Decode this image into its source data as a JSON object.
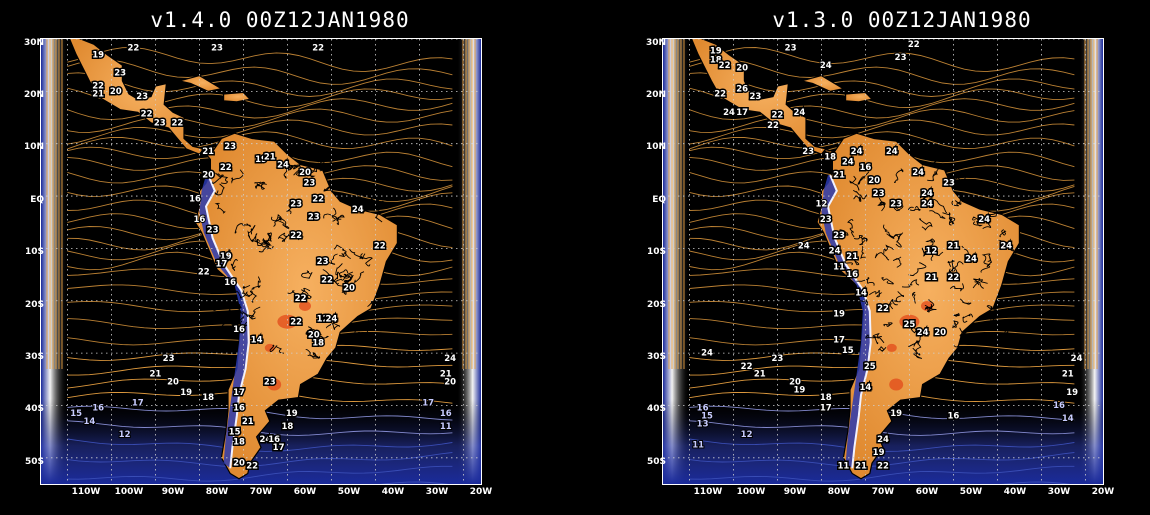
{
  "panels": [
    {
      "title": "v1.4.0  00Z12JAN1980",
      "lat_labels": [
        "30N",
        "20N",
        "10N",
        "EQ",
        "10S",
        "20S",
        "30S",
        "40S",
        "50S"
      ],
      "lon_labels": [
        "110W",
        "100W",
        "90W",
        "80W",
        "70W",
        "60W",
        "50W",
        "40W",
        "30W",
        "20W"
      ],
      "contour_labels": [
        {
          "text": "22",
          "lon": -95,
          "lat": 27.8
        },
        {
          "text": "23",
          "lon": -76,
          "lat": 27.8
        },
        {
          "text": "22",
          "lon": -53,
          "lat": 27.8
        },
        {
          "text": "19",
          "lon": -103,
          "lat": 26.5
        },
        {
          "text": "23",
          "lon": -98,
          "lat": 23
        },
        {
          "text": "22",
          "lon": -103,
          "lat": 20.5
        },
        {
          "text": "21",
          "lon": -103,
          "lat": 19
        },
        {
          "text": "20",
          "lon": -99,
          "lat": 19.5
        },
        {
          "text": "23",
          "lon": -93,
          "lat": 18.5
        },
        {
          "text": "22",
          "lon": -92,
          "lat": 15.2
        },
        {
          "text": "23",
          "lon": -89,
          "lat": 13.5
        },
        {
          "text": "22",
          "lon": -85,
          "lat": 13.5
        },
        {
          "text": "21",
          "lon": -78,
          "lat": 8
        },
        {
          "text": "23",
          "lon": -73,
          "lat": 9
        },
        {
          "text": "19",
          "lon": -66,
          "lat": 6.5
        },
        {
          "text": "21",
          "lon": -64,
          "lat": 7
        },
        {
          "text": "22",
          "lon": -74,
          "lat": 5
        },
        {
          "text": "20",
          "lon": -78,
          "lat": 3.5
        },
        {
          "text": "24",
          "lon": -61,
          "lat": 5.5
        },
        {
          "text": "20",
          "lon": -56,
          "lat": 4
        },
        {
          "text": "23",
          "lon": -55,
          "lat": 2
        },
        {
          "text": "16",
          "lon": -81,
          "lat": -1
        },
        {
          "text": "23",
          "lon": -58,
          "lat": -2
        },
        {
          "text": "22",
          "lon": -53,
          "lat": -1
        },
        {
          "text": "23",
          "lon": -54,
          "lat": -4.5
        },
        {
          "text": "24",
          "lon": -44,
          "lat": -3
        },
        {
          "text": "16",
          "lon": -80,
          "lat": -5
        },
        {
          "text": "23",
          "lon": -77,
          "lat": -7
        },
        {
          "text": "22",
          "lon": -58,
          "lat": -8
        },
        {
          "text": "22",
          "lon": -39,
          "lat": -10
        },
        {
          "text": "19",
          "lon": -74,
          "lat": -12
        },
        {
          "text": "17",
          "lon": -75,
          "lat": -13.5
        },
        {
          "text": "22",
          "lon": -79,
          "lat": -15
        },
        {
          "text": "16",
          "lon": -73,
          "lat": -17
        },
        {
          "text": "23",
          "lon": -52,
          "lat": -13
        },
        {
          "text": "22",
          "lon": -51,
          "lat": -16.5
        },
        {
          "text": "20",
          "lon": -46,
          "lat": -18
        },
        {
          "text": "22",
          "lon": -57,
          "lat": -20
        },
        {
          "text": "22",
          "lon": -58,
          "lat": -24.5
        },
        {
          "text": "12",
          "lon": -52,
          "lat": -24
        },
        {
          "text": "24",
          "lon": -50,
          "lat": -24
        },
        {
          "text": "20",
          "lon": -54,
          "lat": -27
        },
        {
          "text": "18",
          "lon": -53,
          "lat": -28.5
        },
        {
          "text": "16",
          "lon": -71,
          "lat": -26
        },
        {
          "text": "14",
          "lon": -67,
          "lat": -28
        },
        {
          "text": "23",
          "lon": -87,
          "lat": -31.5
        },
        {
          "text": "21",
          "lon": -90,
          "lat": -34.5
        },
        {
          "text": "20",
          "lon": -86,
          "lat": -36
        },
        {
          "text": "19",
          "lon": -83,
          "lat": -38
        },
        {
          "text": "17",
          "lon": -94,
          "lat": -40
        },
        {
          "text": "18",
          "lon": -78,
          "lat": -39
        },
        {
          "text": "17",
          "lon": -71,
          "lat": -38
        },
        {
          "text": "16",
          "lon": -71,
          "lat": -41
        },
        {
          "text": "21",
          "lon": -69,
          "lat": -43.5
        },
        {
          "text": "23",
          "lon": -64,
          "lat": -36
        },
        {
          "text": "19",
          "lon": -59,
          "lat": -42
        },
        {
          "text": "18",
          "lon": -60,
          "lat": -44.5
        },
        {
          "text": "15",
          "lon": -108,
          "lat": -42
        },
        {
          "text": "16",
          "lon": -103,
          "lat": -41
        },
        {
          "text": "14",
          "lon": -105,
          "lat": -43.5
        },
        {
          "text": "12",
          "lon": -97,
          "lat": -46
        },
        {
          "text": "15",
          "lon": -72,
          "lat": -45.5
        },
        {
          "text": "18",
          "lon": -71,
          "lat": -47.5
        },
        {
          "text": "24",
          "lon": -65,
          "lat": -47
        },
        {
          "text": "16",
          "lon": -63,
          "lat": -47
        },
        {
          "text": "17",
          "lon": -62,
          "lat": -48.5
        },
        {
          "text": "20",
          "lon": -71,
          "lat": -51.5
        },
        {
          "text": "22",
          "lon": -68,
          "lat": -52
        },
        {
          "text": "24",
          "lon": -23,
          "lat": -31.5
        },
        {
          "text": "21",
          "lon": -24,
          "lat": -34.5
        },
        {
          "text": "20",
          "lon": -23,
          "lat": -36
        },
        {
          "text": "17",
          "lon": -28,
          "lat": -40
        },
        {
          "text": "16",
          "lon": -24,
          "lat": -42
        },
        {
          "text": "11",
          "lon": -24,
          "lat": -44.5
        }
      ]
    },
    {
      "title": "v1.3.0  00Z12JAN1980",
      "lat_labels": [
        "30N",
        "20N",
        "10N",
        "EQ",
        "10S",
        "20S",
        "30S",
        "40S",
        "50S"
      ],
      "lon_labels": [
        "110W",
        "100W",
        "90W",
        "80W",
        "70W",
        "60W",
        "50W",
        "40W",
        "30W",
        "20W"
      ],
      "contour_labels": [
        {
          "text": "23",
          "lon": -87,
          "lat": 27.8
        },
        {
          "text": "22",
          "lon": -59,
          "lat": 28.5
        },
        {
          "text": "23",
          "lon": -62,
          "lat": 26
        },
        {
          "text": "24",
          "lon": -79,
          "lat": 24.5
        },
        {
          "text": "19",
          "lon": -104,
          "lat": 27.2
        },
        {
          "text": "18",
          "lon": -104,
          "lat": 25.5
        },
        {
          "text": "22",
          "lon": -102,
          "lat": 24.5
        },
        {
          "text": "20",
          "lon": -98,
          "lat": 24
        },
        {
          "text": "26",
          "lon": -98,
          "lat": 20
        },
        {
          "text": "22",
          "lon": -103,
          "lat": 19
        },
        {
          "text": "23",
          "lon": -95,
          "lat": 18.5
        },
        {
          "text": "24",
          "lon": -101,
          "lat": 15.5
        },
        {
          "text": "17",
          "lon": -98,
          "lat": 15.5
        },
        {
          "text": "22",
          "lon": -90,
          "lat": 15
        },
        {
          "text": "24",
          "lon": -85,
          "lat": 15.5
        },
        {
          "text": "22",
          "lon": -91,
          "lat": 13
        },
        {
          "text": "23",
          "lon": -83,
          "lat": 8
        },
        {
          "text": "24",
          "lon": -72,
          "lat": 8
        },
        {
          "text": "24",
          "lon": -64,
          "lat": 8
        },
        {
          "text": "18",
          "lon": -78,
          "lat": 7
        },
        {
          "text": "24",
          "lon": -74,
          "lat": 6
        },
        {
          "text": "16",
          "lon": -70,
          "lat": 5
        },
        {
          "text": "21",
          "lon": -76,
          "lat": 3.5
        },
        {
          "text": "20",
          "lon": -68,
          "lat": 2.5
        },
        {
          "text": "24",
          "lon": -58,
          "lat": 4
        },
        {
          "text": "23",
          "lon": -51,
          "lat": 2
        },
        {
          "text": "24",
          "lon": -56,
          "lat": 0
        },
        {
          "text": "23",
          "lon": -67,
          "lat": 0
        },
        {
          "text": "12",
          "lon": -80,
          "lat": -2
        },
        {
          "text": "23",
          "lon": -63,
          "lat": -2
        },
        {
          "text": "24",
          "lon": -56,
          "lat": -2
        },
        {
          "text": "23",
          "lon": -79,
          "lat": -5
        },
        {
          "text": "24",
          "lon": -43,
          "lat": -5
        },
        {
          "text": "24",
          "lon": -84,
          "lat": -10
        },
        {
          "text": "24",
          "lon": -38,
          "lat": -10
        },
        {
          "text": "23",
          "lon": -76,
          "lat": -8
        },
        {
          "text": "21",
          "lon": -50,
          "lat": -10
        },
        {
          "text": "12",
          "lon": -55,
          "lat": -11
        },
        {
          "text": "24",
          "lon": -77,
          "lat": -11
        },
        {
          "text": "21",
          "lon": -73,
          "lat": -12
        },
        {
          "text": "24",
          "lon": -46,
          "lat": -12.5
        },
        {
          "text": "11",
          "lon": -76,
          "lat": -14
        },
        {
          "text": "16",
          "lon": -73,
          "lat": -15.5
        },
        {
          "text": "21",
          "lon": -55,
          "lat": -16
        },
        {
          "text": "22",
          "lon": -50,
          "lat": -16
        },
        {
          "text": "14",
          "lon": -71,
          "lat": -19
        },
        {
          "text": "22",
          "lon": -66,
          "lat": -22
        },
        {
          "text": "19",
          "lon": -76,
          "lat": -23
        },
        {
          "text": "25",
          "lon": -60,
          "lat": -25
        },
        {
          "text": "24",
          "lon": -57,
          "lat": -26.5
        },
        {
          "text": "20",
          "lon": -53,
          "lat": -26.5
        },
        {
          "text": "17",
          "lon": -76,
          "lat": -28
        },
        {
          "text": "15",
          "lon": -74,
          "lat": -30
        },
        {
          "text": "25",
          "lon": -69,
          "lat": -33
        },
        {
          "text": "24",
          "lon": -106,
          "lat": -30.5
        },
        {
          "text": "23",
          "lon": -90,
          "lat": -31.5
        },
        {
          "text": "22",
          "lon": -97,
          "lat": -33
        },
        {
          "text": "21",
          "lon": -94,
          "lat": -34.5
        },
        {
          "text": "20",
          "lon": -86,
          "lat": -36
        },
        {
          "text": "19",
          "lon": -85,
          "lat": -37.5
        },
        {
          "text": "18",
          "lon": -79,
          "lat": -39
        },
        {
          "text": "17",
          "lon": -79,
          "lat": -41
        },
        {
          "text": "19",
          "lon": -63,
          "lat": -42
        },
        {
          "text": "16",
          "lon": -50,
          "lat": -42.5
        },
        {
          "text": "14",
          "lon": -70,
          "lat": -37
        },
        {
          "text": "16",
          "lon": -107,
          "lat": -41
        },
        {
          "text": "15",
          "lon": -106,
          "lat": -42.5
        },
        {
          "text": "13",
          "lon": -107,
          "lat": -44
        },
        {
          "text": "12",
          "lon": -97,
          "lat": -46
        },
        {
          "text": "11",
          "lon": -108,
          "lat": -48
        },
        {
          "text": "24",
          "lon": -66,
          "lat": -47
        },
        {
          "text": "19",
          "lon": -67,
          "lat": -49.5
        },
        {
          "text": "21",
          "lon": -71,
          "lat": -52
        },
        {
          "text": "22",
          "lon": -66,
          "lat": -52
        },
        {
          "text": "11",
          "lon": -75,
          "lat": -52
        },
        {
          "text": "24",
          "lon": -22,
          "lat": -31.5
        },
        {
          "text": "21",
          "lon": -24,
          "lat": -34.5
        },
        {
          "text": "19",
          "lon": -23,
          "lat": -38
        },
        {
          "text": "16",
          "lon": -26,
          "lat": -40.5
        },
        {
          "text": "14",
          "lon": -24,
          "lat": -43
        }
      ]
    }
  ],
  "colors": {
    "background": "#000000",
    "warm_contours": "#e8a040",
    "cold_contours": "#3b4fb8",
    "land_fill": "#f0a24a",
    "hot_spot": "#e24a1a",
    "cold_fill": "#2a3ab0",
    "grid": "#cfcfcf",
    "text": "#ffffff"
  }
}
